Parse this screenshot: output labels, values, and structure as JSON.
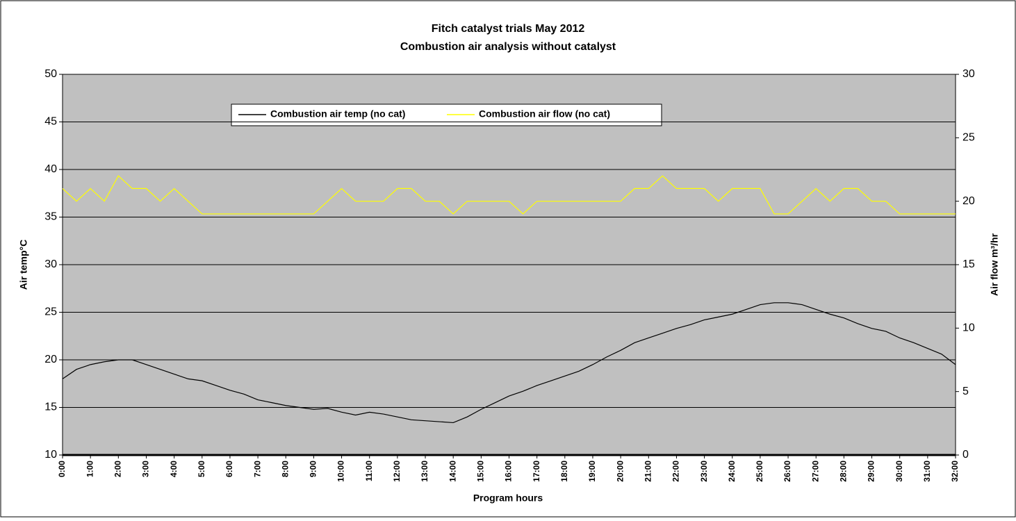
{
  "chart_data": {
    "type": "line",
    "title": "Fitch catalyst trials May 2012",
    "subtitle": "Combustion air analysis without catalyst",
    "x_label": "Program hours",
    "y_label": "Air temp°C",
    "y2_label": "Air flow m³/hr",
    "x": [
      0,
      0.5,
      1,
      1.5,
      2,
      2.5,
      3,
      3.5,
      4,
      4.5,
      5,
      5.5,
      6,
      6.5,
      7,
      7.5,
      8,
      8.5,
      9,
      9.5,
      10,
      10.5,
      11,
      11.5,
      12,
      12.5,
      13,
      13.5,
      14,
      14.5,
      15,
      15.5,
      16,
      16.5,
      17,
      17.5,
      18,
      18.5,
      19,
      19.5,
      20,
      20.5,
      21,
      21.5,
      22,
      22.5,
      23,
      23.5,
      24,
      24.5,
      25,
      25.5,
      26,
      26.5,
      27,
      27.5,
      28,
      28.5,
      29,
      29.5,
      30,
      30.5,
      31,
      31.5,
      32
    ],
    "xlim": [
      0,
      32
    ],
    "xticks": [
      {
        "value": 0,
        "label": "0:00"
      },
      {
        "value": 1,
        "label": "1:00"
      },
      {
        "value": 2,
        "label": "2:00"
      },
      {
        "value": 3,
        "label": "3:00"
      },
      {
        "value": 4,
        "label": "4:00"
      },
      {
        "value": 5,
        "label": "5:00"
      },
      {
        "value": 6,
        "label": "6:00"
      },
      {
        "value": 7,
        "label": "7:00"
      },
      {
        "value": 8,
        "label": "8:00"
      },
      {
        "value": 9,
        "label": "9:00"
      },
      {
        "value": 10,
        "label": "10:00"
      },
      {
        "value": 11,
        "label": "11:00"
      },
      {
        "value": 12,
        "label": "12:00"
      },
      {
        "value": 13,
        "label": "13:00"
      },
      {
        "value": 14,
        "label": "14:00"
      },
      {
        "value": 15,
        "label": "15:00"
      },
      {
        "value": 16,
        "label": "16:00"
      },
      {
        "value": 17,
        "label": "17:00"
      },
      {
        "value": 18,
        "label": "18:00"
      },
      {
        "value": 19,
        "label": "19:00"
      },
      {
        "value": 20,
        "label": "20:00"
      },
      {
        "value": 21,
        "label": "21:00"
      },
      {
        "value": 22,
        "label": "22:00"
      },
      {
        "value": 23,
        "label": "23:00"
      },
      {
        "value": 24,
        "label": "24:00"
      },
      {
        "value": 25,
        "label": "25:00"
      },
      {
        "value": 26,
        "label": "26:00"
      },
      {
        "value": 27,
        "label": "27:00"
      },
      {
        "value": 28,
        "label": "28:00"
      },
      {
        "value": 29,
        "label": "29:00"
      },
      {
        "value": 30,
        "label": "30:00"
      },
      {
        "value": 31,
        "label": "31:00"
      },
      {
        "value": 32,
        "label": "32:00"
      }
    ],
    "ylim": [
      10,
      50
    ],
    "yticks": [
      10,
      15,
      20,
      25,
      30,
      35,
      40,
      45,
      50
    ],
    "y2lim": [
      0,
      30
    ],
    "y2ticks": [
      0,
      5,
      10,
      15,
      20,
      25,
      30
    ],
    "grid": true,
    "series": [
      {
        "name": "Combustion air temp (no cat)",
        "color": "#000000",
        "values": [
          18,
          19,
          19.5,
          19.8,
          20,
          20,
          19.5,
          19,
          18.5,
          18,
          17.8,
          17.3,
          16.8,
          16.4,
          15.8,
          15.5,
          15.2,
          15,
          14.8,
          14.9,
          14.5,
          14.2,
          14.5,
          14.3,
          14,
          13.7,
          13.6,
          13.5,
          13.4,
          14,
          14.8,
          15.5,
          16.2,
          16.7,
          17.3,
          17.8,
          18.3,
          18.8,
          19.5,
          20.3,
          21,
          21.8,
          22.3,
          22.8,
          23.3,
          23.7,
          24.2,
          24.5,
          24.8,
          25.3,
          25.8,
          26,
          26,
          25.8,
          25.3,
          24.8,
          24.4,
          23.8,
          23.3,
          23,
          22.3,
          21.8,
          21.2,
          20.6,
          19.5
        ]
      },
      {
        "name": "Combustion air flow (no cat)",
        "color": "#ffff00",
        "axis": "y2",
        "values": [
          21,
          20,
          21,
          20,
          22,
          21,
          21,
          20,
          21,
          20,
          19,
          19,
          19,
          19,
          19,
          19,
          19,
          19,
          19,
          20,
          21,
          20,
          20,
          20,
          21,
          21,
          20,
          20,
          19,
          20,
          20,
          20,
          20,
          19,
          20,
          20,
          20,
          20,
          20,
          20,
          20,
          21,
          21,
          22,
          21,
          21,
          21,
          20,
          21,
          21,
          21,
          19,
          19,
          20,
          21,
          20,
          21,
          21,
          20,
          20,
          19,
          19,
          19,
          19,
          19
        ]
      }
    ]
  }
}
